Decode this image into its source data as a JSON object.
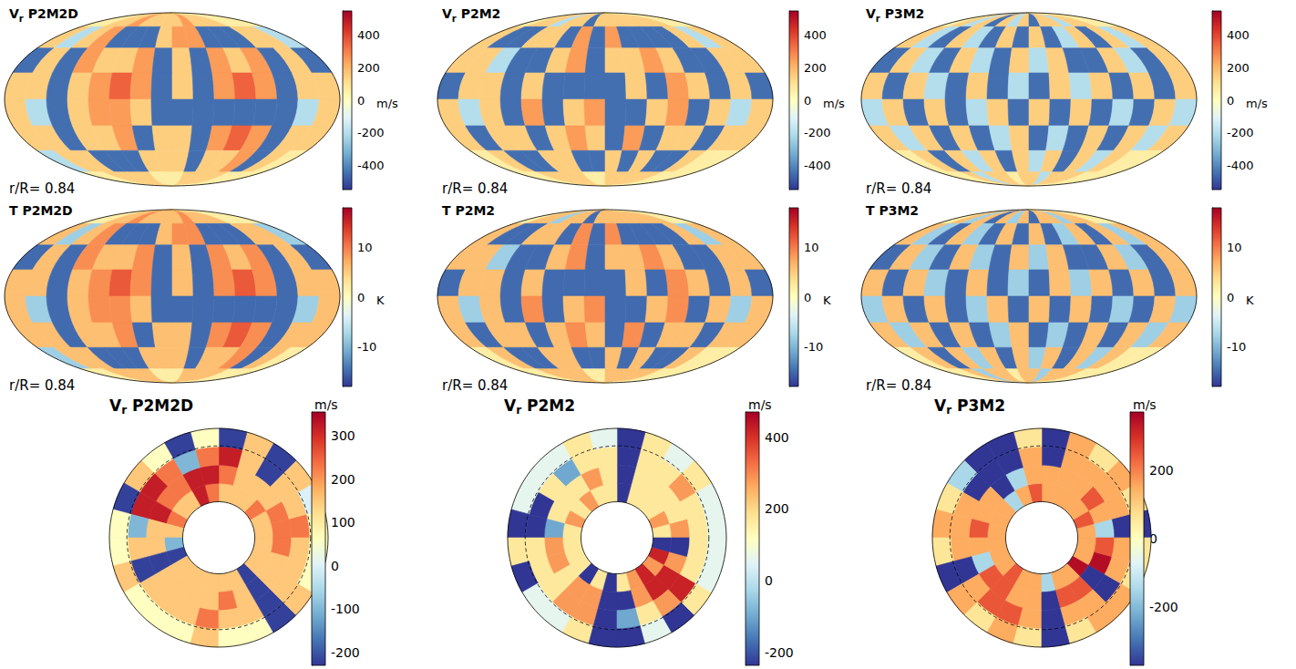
{
  "chart_data": [
    {
      "type": "mollweide",
      "title": "Vr P2M2D",
      "annotation": "r/R= 0.84",
      "unit": "m/s",
      "colorbar_range": [
        -550,
        550
      ],
      "colorbar_ticks": [
        -400,
        -200,
        0,
        200,
        400
      ],
      "cells": [
        [
          60,
          60,
          150,
          150,
          250,
          150,
          150,
          150,
          150,
          250,
          150,
          150,
          150,
          60,
          60,
          60
        ],
        [
          150,
          -200,
          150,
          250,
          -450,
          -450,
          -450,
          150,
          250,
          250,
          -450,
          -450,
          -450,
          150,
          150,
          -200
        ],
        [
          -450,
          150,
          -450,
          250,
          150,
          150,
          250,
          -450,
          150,
          -450,
          250,
          150,
          250,
          -450,
          150,
          -450
        ],
        [
          150,
          150,
          -450,
          150,
          250,
          350,
          250,
          -450,
          150,
          -450,
          250,
          350,
          250,
          -450,
          150,
          150
        ],
        [
          150,
          -200,
          -450,
          150,
          250,
          250,
          150,
          -450,
          -450,
          -450,
          -450,
          -450,
          -450,
          -450,
          -200,
          150
        ],
        [
          150,
          150,
          -450,
          150,
          150,
          250,
          -450,
          150,
          150,
          -450,
          250,
          350,
          250,
          -450,
          150,
          150
        ],
        [
          -200,
          150,
          150,
          -450,
          -450,
          -450,
          150,
          150,
          150,
          -450,
          150,
          150,
          250,
          -450,
          150,
          60
        ],
        [
          60,
          60,
          150,
          150,
          150,
          150,
          60,
          60,
          60,
          150,
          150,
          150,
          150,
          60,
          60,
          60
        ]
      ]
    },
    {
      "type": "mollweide",
      "title": "Vr P2M2",
      "annotation": "r/R= 0.84",
      "unit": "m/s",
      "colorbar_range": [
        -550,
        550
      ],
      "colorbar_ticks": [
        -400,
        -200,
        0,
        200,
        400
      ],
      "cells": [
        [
          60,
          150,
          150,
          -200,
          150,
          150,
          -450,
          150,
          150,
          150,
          150,
          150,
          150,
          150,
          60,
          60
        ],
        [
          150,
          -450,
          -450,
          150,
          150,
          -450,
          250,
          -450,
          250,
          -450,
          -450,
          -450,
          -450,
          150,
          -200,
          150
        ],
        [
          150,
          150,
          -200,
          -450,
          -450,
          150,
          250,
          -450,
          150,
          150,
          250,
          150,
          -450,
          -450,
          150,
          150
        ],
        [
          -450,
          150,
          150,
          -450,
          150,
          -450,
          -450,
          -450,
          -450,
          150,
          -450,
          250,
          150,
          -450,
          150,
          -450
        ],
        [
          150,
          -200,
          150,
          -450,
          250,
          -450,
          150,
          250,
          -450,
          -450,
          150,
          250,
          -450,
          150,
          -200,
          150
        ],
        [
          150,
          -450,
          150,
          150,
          -450,
          150,
          250,
          150,
          -450,
          250,
          -450,
          150,
          150,
          -450,
          150,
          150
        ],
        [
          60,
          150,
          -450,
          -450,
          150,
          150,
          -450,
          -450,
          150,
          -450,
          150,
          -450,
          -450,
          150,
          60,
          60
        ],
        [
          60,
          60,
          150,
          150,
          150,
          150,
          60,
          60,
          150,
          150,
          150,
          150,
          150,
          60,
          60,
          60
        ]
      ]
    },
    {
      "type": "mollweide",
      "title": "Vr P3M2",
      "annotation": "r/R= 0.84",
      "unit": "m/s",
      "colorbar_range": [
        -550,
        550
      ],
      "colorbar_ticks": [
        -400,
        -200,
        0,
        200,
        400
      ],
      "cells": [
        [
          60,
          150,
          -200,
          150,
          -450,
          150,
          -200,
          150,
          -450,
          150,
          150,
          -200,
          150,
          150,
          60,
          60
        ],
        [
          150,
          -200,
          -450,
          150,
          -200,
          -450,
          150,
          -450,
          150,
          -450,
          -200,
          150,
          -450,
          150,
          -200,
          150
        ],
        [
          -450,
          150,
          -200,
          -450,
          150,
          -200,
          -450,
          150,
          -200,
          150,
          -450,
          -450,
          150,
          -200,
          -450,
          150
        ],
        [
          150,
          -450,
          150,
          -200,
          -450,
          150,
          -450,
          -200,
          -450,
          150,
          -200,
          150,
          -450,
          150,
          -450,
          150
        ],
        [
          -200,
          150,
          -450,
          150,
          -450,
          -200,
          150,
          -450,
          150,
          -450,
          150,
          -450,
          -200,
          -450,
          150,
          -200
        ],
        [
          150,
          -200,
          150,
          -450,
          150,
          -450,
          -200,
          150,
          -450,
          -200,
          -450,
          150,
          -450,
          150,
          -200,
          150
        ],
        [
          60,
          150,
          -450,
          150,
          -200,
          150,
          -450,
          150,
          -200,
          150,
          -450,
          150,
          -200,
          150,
          60,
          60
        ],
        [
          60,
          60,
          150,
          -200,
          150,
          150,
          60,
          150,
          150,
          -200,
          150,
          150,
          150,
          60,
          60,
          60
        ]
      ]
    },
    {
      "type": "mollweide",
      "title": "T P2M2D",
      "annotation": "r/R= 0.84",
      "unit": "K",
      "colorbar_range": [
        -18,
        18
      ],
      "colorbar_ticks": [
        -10,
        0,
        10
      ],
      "cells": [
        [
          2,
          2,
          6,
          6,
          9,
          6,
          6,
          6,
          6,
          9,
          6,
          6,
          6,
          2,
          2,
          2
        ],
        [
          6,
          -8,
          6,
          9,
          -15,
          -15,
          -15,
          6,
          9,
          9,
          -15,
          -15,
          -15,
          6,
          6,
          -8
        ],
        [
          -15,
          6,
          -15,
          9,
          6,
          6,
          9,
          -15,
          6,
          -15,
          9,
          6,
          9,
          -15,
          6,
          -15
        ],
        [
          6,
          6,
          -15,
          6,
          9,
          12,
          9,
          -15,
          6,
          -15,
          9,
          12,
          9,
          -15,
          6,
          6
        ],
        [
          6,
          -8,
          -15,
          6,
          9,
          9,
          6,
          -15,
          -15,
          -15,
          -15,
          -15,
          -15,
          -15,
          -8,
          6
        ],
        [
          6,
          6,
          -15,
          6,
          6,
          9,
          -15,
          6,
          6,
          -15,
          9,
          12,
          9,
          -15,
          6,
          6
        ],
        [
          -8,
          6,
          6,
          -15,
          -15,
          -15,
          6,
          6,
          6,
          -15,
          6,
          6,
          9,
          -15,
          6,
          2
        ],
        [
          2,
          2,
          6,
          6,
          6,
          6,
          2,
          2,
          2,
          6,
          6,
          6,
          6,
          2,
          2,
          2
        ]
      ]
    },
    {
      "type": "mollweide",
      "title": "T P2M2",
      "annotation": "r/R= 0.84",
      "unit": "K",
      "colorbar_range": [
        -18,
        18
      ],
      "colorbar_ticks": [
        -10,
        0,
        10
      ],
      "cells": [
        [
          2,
          6,
          6,
          -8,
          6,
          6,
          -15,
          6,
          6,
          6,
          6,
          6,
          6,
          6,
          2,
          2
        ],
        [
          6,
          -15,
          -15,
          6,
          6,
          -15,
          9,
          -15,
          9,
          -15,
          -15,
          -15,
          -15,
          6,
          -8,
          6
        ],
        [
          6,
          6,
          -8,
          -15,
          -15,
          6,
          9,
          -15,
          6,
          6,
          9,
          6,
          -15,
          -15,
          6,
          6
        ],
        [
          -15,
          6,
          6,
          -15,
          6,
          -15,
          -15,
          -15,
          -15,
          6,
          -15,
          9,
          6,
          -15,
          6,
          -15
        ],
        [
          6,
          -8,
          6,
          -15,
          9,
          -15,
          6,
          9,
          -15,
          -15,
          6,
          9,
          -15,
          6,
          -8,
          6
        ],
        [
          6,
          -15,
          6,
          6,
          -15,
          6,
          9,
          6,
          -15,
          9,
          -15,
          6,
          6,
          -15,
          6,
          6
        ],
        [
          2,
          6,
          -15,
          -15,
          6,
          6,
          -15,
          -15,
          6,
          -15,
          6,
          -15,
          -15,
          6,
          2,
          2
        ],
        [
          2,
          2,
          6,
          6,
          6,
          6,
          2,
          2,
          6,
          6,
          6,
          6,
          6,
          2,
          2,
          2
        ]
      ]
    },
    {
      "type": "mollweide",
      "title": "T P3M2",
      "annotation": "r/R= 0.84",
      "unit": "K",
      "colorbar_range": [
        -18,
        18
      ],
      "colorbar_ticks": [
        -10,
        0,
        10
      ],
      "cells": [
        [
          2,
          6,
          -8,
          6,
          -15,
          6,
          -8,
          6,
          -15,
          6,
          6,
          -8,
          6,
          6,
          2,
          2
        ],
        [
          6,
          -8,
          -15,
          6,
          -8,
          -15,
          6,
          -15,
          6,
          -15,
          -8,
          6,
          -15,
          6,
          -8,
          6
        ],
        [
          -15,
          6,
          -8,
          -15,
          6,
          -8,
          -15,
          6,
          -8,
          6,
          -15,
          -15,
          6,
          -8,
          -15,
          6
        ],
        [
          6,
          -15,
          6,
          -8,
          -15,
          6,
          -15,
          -8,
          -15,
          6,
          -8,
          6,
          -15,
          6,
          -15,
          6
        ],
        [
          -8,
          6,
          -15,
          6,
          -15,
          -8,
          6,
          -15,
          6,
          -15,
          6,
          -15,
          -8,
          -15,
          6,
          -8
        ],
        [
          6,
          -8,
          6,
          -15,
          6,
          -15,
          -8,
          6,
          -15,
          -8,
          -15,
          6,
          -15,
          6,
          -8,
          6
        ],
        [
          2,
          6,
          -15,
          6,
          -8,
          6,
          -15,
          6,
          -8,
          6,
          -15,
          6,
          -8,
          6,
          2,
          2
        ],
        [
          2,
          2,
          6,
          -8,
          6,
          6,
          2,
          6,
          6,
          -8,
          6,
          6,
          6,
          2,
          2,
          2
        ]
      ]
    },
    {
      "type": "annulus",
      "title": "Vr P2M2D",
      "unit": "m/s",
      "radius_range": [
        0.33,
        1.0
      ],
      "dashed_radius": 0.84,
      "colorbar_range": [
        -230,
        355
      ],
      "colorbar_ticks": [
        -200,
        -100,
        0,
        100,
        200,
        300
      ],
      "cells": [
        [
          150,
          150,
          230,
          150,
          150,
          150,
          230,
          320,
          150,
          150,
          230,
          150,
          -100,
          -220,
          150,
          150,
          150,
          150,
          150,
          150,
          -220,
          150,
          150,
          150
        ],
        [
          230,
          230,
          150,
          150,
          150,
          230,
          320,
          320,
          230,
          230,
          320,
          150,
          150,
          -220,
          150,
          150,
          150,
          150,
          230,
          150,
          -220,
          150,
          150,
          230
        ],
        [
          230,
          150,
          150,
          -220,
          150,
          320,
          230,
          -100,
          230,
          320,
          320,
          -100,
          150,
          -220,
          150,
          150,
          150,
          230,
          150,
          150,
          -220,
          150,
          150,
          150
        ],
        [
          60,
          0,
          150,
          -220,
          150,
          -220,
          60,
          -220,
          60,
          150,
          -220,
          60,
          60,
          150,
          60,
          60,
          60,
          150,
          60,
          60,
          -220,
          150,
          60,
          60
        ]
      ]
    },
    {
      "type": "annulus",
      "title": "Vr P2M2",
      "unit": "m/s",
      "radius_range": [
        0.33,
        1.0
      ],
      "dashed_radius": 0.84,
      "colorbar_range": [
        -235,
        470
      ],
      "colorbar_ticks": [
        -200,
        0,
        200,
        400
      ],
      "cells": [
        [
          170,
          280,
          170,
          170,
          170,
          -235,
          170,
          170,
          280,
          170,
          280,
          170,
          170,
          170,
          170,
          -235,
          170,
          -235,
          170,
          280,
          420,
          280,
          420,
          -235
        ],
        [
          280,
          170,
          170,
          170,
          170,
          -235,
          170,
          280,
          170,
          170,
          170,
          -100,
          280,
          280,
          170,
          280,
          280,
          -235,
          -235,
          280,
          420,
          420,
          280,
          -235
        ],
        [
          170,
          170,
          280,
          170,
          170,
          -235,
          170,
          170,
          -100,
          170,
          -235,
          -235,
          170,
          170,
          170,
          280,
          280,
          -235,
          -100,
          170,
          280,
          420,
          170,
          170
        ],
        [
          60,
          60,
          170,
          60,
          170,
          -235,
          60,
          170,
          60,
          60,
          60,
          -235,
          170,
          -235,
          60,
          60,
          170,
          -235,
          -235,
          60,
          -235,
          170,
          60,
          60
        ]
      ]
    },
    {
      "type": "annulus",
      "title": "Vr P3M2",
      "unit": "m/s",
      "radius_range": [
        0.33,
        1.0
      ],
      "dashed_radius": 0.84,
      "colorbar_range": [
        -370,
        370
      ],
      "colorbar_ticks": [
        -200,
        0,
        200
      ],
      "cells": [
        [
          150,
          250,
          150,
          150,
          150,
          150,
          250,
          150,
          -150,
          150,
          150,
          150,
          150,
          150,
          150,
          250,
          150,
          150,
          -150,
          150,
          150,
          350,
          150,
          150
        ],
        [
          -150,
          150,
          250,
          150,
          150,
          150,
          150,
          -150,
          -370,
          150,
          150,
          250,
          150,
          -150,
          250,
          250,
          150,
          150,
          -370,
          250,
          250,
          -370,
          350,
          250
        ],
        [
          -370,
          150,
          150,
          150,
          150,
          -370,
          150,
          -370,
          -370,
          -370,
          150,
          150,
          150,
          -370,
          150,
          250,
          250,
          150,
          -370,
          150,
          150,
          -370,
          150,
          150
        ],
        [
          -370,
          60,
          150,
          60,
          150,
          -370,
          60,
          -370,
          -370,
          -150,
          60,
          150,
          60,
          -370,
          150,
          60,
          150,
          60,
          -370,
          60,
          150,
          150,
          60,
          60
        ]
      ]
    }
  ]
}
